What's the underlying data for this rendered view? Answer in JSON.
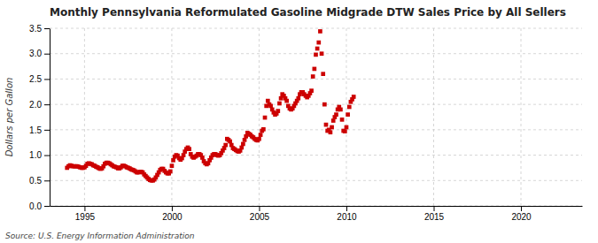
{
  "chart_data": {
    "type": "scatter",
    "title": "Monthly Pennsylvania Reformulated Gasoline Midgrade DTW Sales Price by All Sellers",
    "ylabel": "Dollars per Gallon",
    "source": "Source: U.S. Energy Information Administration",
    "color": "#cc0000",
    "marker": "square",
    "grid": true,
    "xlim": [
      1993.0,
      2023.5
    ],
    "ylim": [
      0.0,
      3.5
    ],
    "xticks": [
      1995,
      2000,
      2005,
      2010,
      2015,
      2020
    ],
    "yticks": [
      {
        "value": 0.0,
        "label": "0.0"
      },
      {
        "value": 0.5,
        "label": "0.5"
      },
      {
        "value": 1.0,
        "label": "1.0"
      },
      {
        "value": 1.5,
        "label": "1.5"
      },
      {
        "value": 2.0,
        "label": "2.0"
      },
      {
        "value": 2.5,
        "label": "2.5"
      },
      {
        "value": 3.0,
        "label": "3.0"
      },
      {
        "value": 3.5,
        "label": "3.5"
      }
    ],
    "x": [
      1994.0,
      1994.083,
      1994.167,
      1994.25,
      1994.333,
      1994.417,
      1994.5,
      1994.583,
      1994.667,
      1994.75,
      1994.833,
      1994.917,
      1995.0,
      1995.083,
      1995.167,
      1995.25,
      1995.333,
      1995.417,
      1995.5,
      1995.583,
      1995.667,
      1995.75,
      1995.833,
      1995.917,
      1996.0,
      1996.083,
      1996.167,
      1996.25,
      1996.333,
      1996.417,
      1996.5,
      1996.583,
      1996.667,
      1996.75,
      1996.833,
      1996.917,
      1997.0,
      1997.083,
      1997.167,
      1997.25,
      1997.333,
      1997.417,
      1997.5,
      1997.583,
      1997.667,
      1997.75,
      1997.833,
      1997.917,
      1998.0,
      1998.083,
      1998.167,
      1998.25,
      1998.333,
      1998.417,
      1998.5,
      1998.583,
      1998.667,
      1998.75,
      1998.833,
      1998.917,
      1999.0,
      1999.083,
      1999.167,
      1999.25,
      1999.333,
      1999.417,
      1999.5,
      1999.583,
      1999.667,
      1999.75,
      1999.833,
      1999.917,
      2000.0,
      2000.083,
      2000.167,
      2000.25,
      2000.333,
      2000.417,
      2000.5,
      2000.583,
      2000.667,
      2000.75,
      2000.833,
      2000.917,
      2001.0,
      2001.083,
      2001.167,
      2001.25,
      2001.333,
      2001.417,
      2001.5,
      2001.583,
      2001.667,
      2001.75,
      2001.833,
      2001.917,
      2002.0,
      2002.083,
      2002.167,
      2002.25,
      2002.333,
      2002.417,
      2002.5,
      2002.583,
      2002.667,
      2002.75,
      2002.833,
      2002.917,
      2003.0,
      2003.083,
      2003.167,
      2003.25,
      2003.333,
      2003.417,
      2003.5,
      2003.583,
      2003.667,
      2003.75,
      2003.833,
      2003.917,
      2004.0,
      2004.083,
      2004.167,
      2004.25,
      2004.333,
      2004.417,
      2004.5,
      2004.583,
      2004.667,
      2004.75,
      2004.833,
      2004.917,
      2005.0,
      2005.083,
      2005.167,
      2005.25,
      2005.333,
      2005.417,
      2005.5,
      2005.583,
      2005.667,
      2005.75,
      2005.833,
      2005.917,
      2006.0,
      2006.083,
      2006.167,
      2006.25,
      2006.333,
      2006.417,
      2006.5,
      2006.583,
      2006.667,
      2006.75,
      2006.833,
      2006.917,
      2007.0,
      2007.083,
      2007.167,
      2007.25,
      2007.333,
      2007.417,
      2007.5,
      2007.583,
      2007.667,
      2007.75,
      2007.833,
      2007.917,
      2008.0,
      2008.083,
      2008.167,
      2008.25,
      2008.333,
      2008.417,
      2008.5,
      2008.583,
      2008.667,
      2008.75,
      2008.833,
      2008.917,
      2009.0,
      2009.083,
      2009.167,
      2009.25,
      2009.333,
      2009.417,
      2009.5,
      2009.583,
      2009.667,
      2009.75,
      2009.833,
      2009.917,
      2010.0,
      2010.083,
      2010.167,
      2010.25,
      2010.333,
      2010.417
    ],
    "values": [
      0.75,
      0.78,
      0.8,
      0.79,
      0.78,
      0.78,
      0.78,
      0.78,
      0.77,
      0.76,
      0.75,
      0.75,
      0.76,
      0.79,
      0.83,
      0.84,
      0.83,
      0.82,
      0.8,
      0.79,
      0.77,
      0.76,
      0.74,
      0.73,
      0.74,
      0.78,
      0.83,
      0.85,
      0.85,
      0.84,
      0.82,
      0.8,
      0.78,
      0.77,
      0.76,
      0.74,
      0.74,
      0.76,
      0.79,
      0.79,
      0.78,
      0.76,
      0.75,
      0.74,
      0.72,
      0.71,
      0.7,
      0.68,
      0.66,
      0.66,
      0.67,
      0.67,
      0.66,
      0.62,
      0.59,
      0.56,
      0.53,
      0.51,
      0.5,
      0.5,
      0.52,
      0.56,
      0.61,
      0.66,
      0.71,
      0.73,
      0.73,
      0.69,
      0.66,
      0.64,
      0.64,
      0.68,
      0.79,
      0.9,
      0.97,
      1.0,
      0.99,
      0.94,
      0.91,
      0.94,
      1.0,
      1.07,
      1.12,
      1.15,
      1.12,
      1.02,
      0.97,
      0.95,
      0.97,
      0.99,
      1.02,
      1.02,
      1.0,
      0.95,
      0.88,
      0.84,
      0.82,
      0.84,
      0.9,
      0.95,
      1.0,
      1.02,
      1.02,
      1.0,
      0.99,
      1.0,
      1.04,
      1.09,
      1.14,
      1.2,
      1.32,
      1.3,
      1.27,
      1.2,
      1.14,
      1.12,
      1.1,
      1.08,
      1.07,
      1.09,
      1.15,
      1.22,
      1.3,
      1.37,
      1.44,
      1.42,
      1.4,
      1.37,
      1.35,
      1.32,
      1.3,
      1.29,
      1.32,
      1.4,
      1.48,
      1.51,
      1.74,
      1.97,
      2.07,
      2.0,
      1.97,
      1.9,
      1.84,
      1.8,
      1.82,
      1.87,
      2.02,
      2.12,
      2.2,
      2.17,
      2.12,
      2.07,
      1.97,
      1.92,
      1.9,
      1.92,
      1.97,
      2.02,
      2.07,
      2.12,
      2.2,
      2.24,
      2.24,
      2.2,
      2.17,
      2.14,
      2.17,
      2.22,
      2.27,
      2.55,
      2.7,
      2.98,
      3.1,
      3.22,
      3.44,
      3.0,
      2.6,
      2.0,
      1.6,
      1.48,
      1.5,
      1.45,
      1.55,
      1.68,
      1.75,
      1.8,
      1.9,
      1.95,
      1.9,
      1.7,
      1.48,
      1.47,
      1.55,
      1.8,
      1.95,
      2.05,
      2.1,
      2.15
    ]
  }
}
